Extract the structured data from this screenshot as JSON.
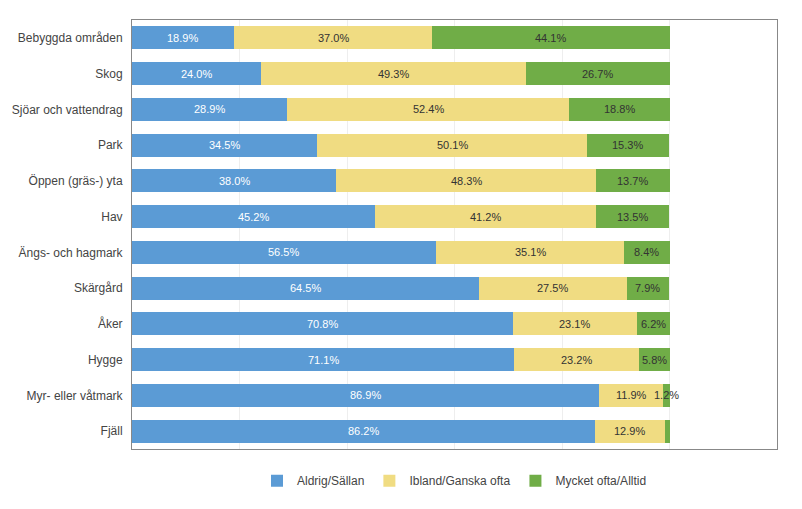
{
  "chart_data": {
    "type": "bar",
    "orientation": "horizontal",
    "stacked": true,
    "data_labels": true,
    "categories": [
      "Bebyggda områden",
      "Skog",
      "Sjöar och vattendrag",
      "Park",
      "Öppen (gräs-) yta",
      "Hav",
      "Ängs- och hagmark",
      "Skärgård",
      "Åker",
      "Hygge",
      "Myr- eller våtmark",
      "Fjäll"
    ],
    "series": [
      {
        "name": "Aldrig/Sällan",
        "color": "#5B9BD5",
        "values": [
          18.9,
          24.0,
          28.9,
          34.5,
          38.0,
          45.2,
          56.5,
          64.5,
          70.8,
          71.1,
          86.9,
          86.2
        ],
        "value_labels": [
          "18.9%",
          "24.0%",
          "28.9%",
          "34.5%",
          "38.0%",
          "45.2%",
          "56.5%",
          "64.5%",
          "70.8%",
          "71.1%",
          "86.9%",
          "86.2%"
        ]
      },
      {
        "name": "Ibland/Ganska ofta",
        "color": "#F0DC82",
        "values": [
          37.0,
          49.3,
          52.4,
          50.1,
          48.3,
          41.2,
          35.1,
          27.5,
          23.1,
          23.2,
          11.9,
          12.9
        ],
        "value_labels": [
          "37.0%",
          "49.3%",
          "52.4%",
          "50.1%",
          "48.3%",
          "41.2%",
          "35.1%",
          "27.5%",
          "23.1%",
          "23.2%",
          "11.9%",
          "12.9%"
        ]
      },
      {
        "name": "Mycket ofta/Alltid",
        "color": "#70AD47",
        "values": [
          44.1,
          26.7,
          18.8,
          15.3,
          13.7,
          13.5,
          8.4,
          7.9,
          6.2,
          5.8,
          1.2,
          0.9
        ],
        "value_labels": [
          "44.1%",
          "26.7%",
          "18.8%",
          "15.3%",
          "13.7%",
          "13.5%",
          "8.4%",
          "7.9%",
          "6.2%",
          "5.8%",
          "1.2%",
          null
        ]
      }
    ],
    "xlim": [
      0,
      120
    ],
    "xticks": [
      0,
      20,
      40,
      60,
      80,
      100,
      120
    ],
    "grid": true,
    "legend": "bottom",
    "tick_labels": "y"
  }
}
